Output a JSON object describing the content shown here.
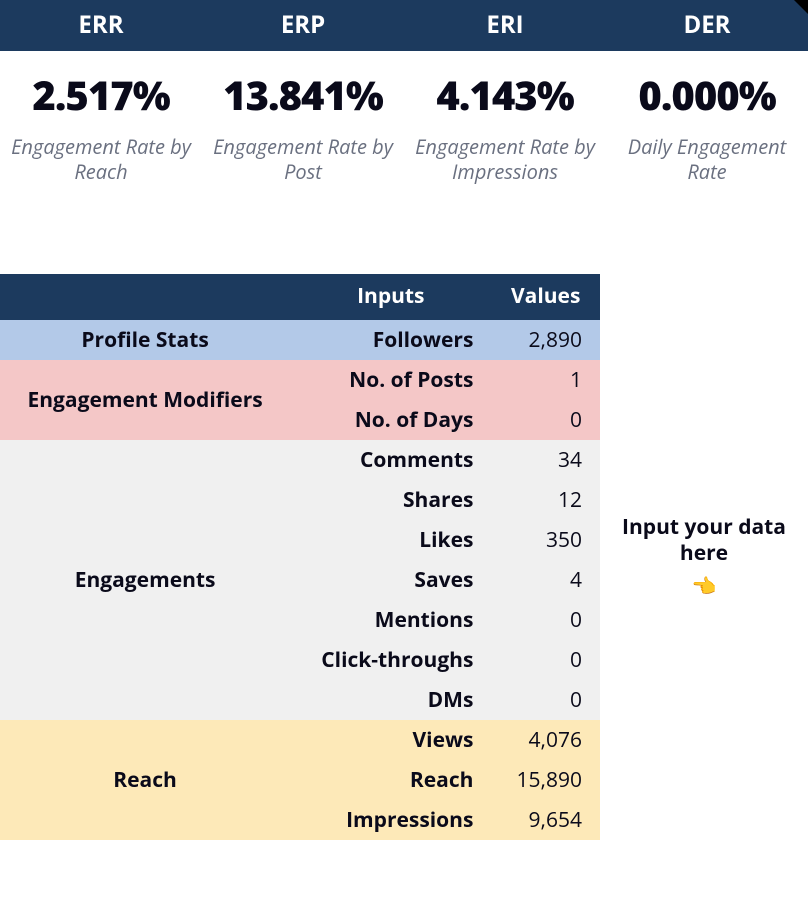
{
  "colors": {
    "header_bg": "#1c3a5e",
    "profile_bg": "#b3c9e8",
    "modifiers_bg": "#f4c7c7",
    "engagements_bg": "#f0f0f0",
    "reach_bg": "#fde9b8",
    "text": "#0a0a1a",
    "desc": "#6a7080"
  },
  "metrics": [
    {
      "code": "ERR",
      "value": "2.517%",
      "desc": "Engagement Rate by Reach"
    },
    {
      "code": "ERP",
      "value": "13.841%",
      "desc": "Engagement Rate by Post"
    },
    {
      "code": "ERI",
      "value": "4.143%",
      "desc": "Engagement Rate by Impressions"
    },
    {
      "code": "DER",
      "value": "0.000%",
      "desc": "Daily Engagement Rate"
    }
  ],
  "table": {
    "headers": {
      "inputs": "Inputs",
      "values": "Values"
    },
    "sections": [
      {
        "label": "Profile Stats",
        "bg": "profile_bg",
        "rows": [
          {
            "input": "Followers",
            "value": "2,890"
          }
        ]
      },
      {
        "label": "Engagement Modifiers",
        "bg": "modifiers_bg",
        "rows": [
          {
            "input": "No. of Posts",
            "value": "1"
          },
          {
            "input": "No. of Days",
            "value": "0"
          }
        ]
      },
      {
        "label": "Engagements",
        "bg": "engagements_bg",
        "rows": [
          {
            "input": "Comments",
            "value": "34"
          },
          {
            "input": "Shares",
            "value": "12"
          },
          {
            "input": "Likes",
            "value": "350"
          },
          {
            "input": "Saves",
            "value": "4"
          },
          {
            "input": "Mentions",
            "value": "0"
          },
          {
            "input": "Click-throughs",
            "value": "0"
          },
          {
            "input": "DMs",
            "value": "0"
          }
        ]
      },
      {
        "label": "Reach",
        "bg": "reach_bg",
        "rows": [
          {
            "input": "Views",
            "value": "4,076"
          },
          {
            "input": "Reach",
            "value": "15,890"
          },
          {
            "input": "Impressions",
            "value": "9,654"
          }
        ]
      }
    ]
  },
  "side_note": {
    "text": "Input your data here",
    "icon": "👈"
  }
}
